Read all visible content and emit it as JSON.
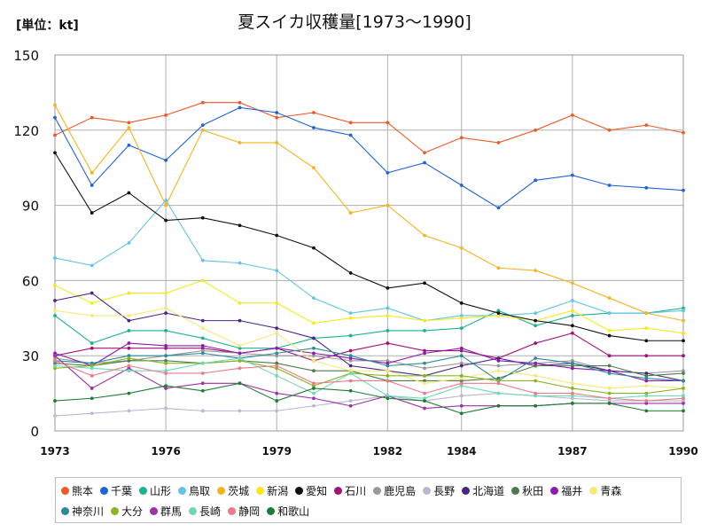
{
  "chart_data": {
    "type": "line",
    "title": "夏スイカ収穫量[1973～1990]",
    "unit_label": "[単位：kt]",
    "ylim": [
      0,
      150
    ],
    "yticks": [
      0,
      30,
      60,
      90,
      120,
      150
    ],
    "xticks": [
      "1973",
      "1976",
      "1979",
      "1982",
      "1984",
      "1987",
      "1990"
    ],
    "grid": true,
    "legend_position": "bottom",
    "years": [
      1973,
      1974,
      1975,
      1976,
      1977,
      1978,
      1979,
      1980,
      1981,
      1982,
      1983,
      1984,
      1985,
      1986,
      1987,
      1988,
      1989,
      1990
    ],
    "series": [
      {
        "name": "熊本",
        "color": "#f05a28",
        "values": [
          118,
          125,
          123,
          126,
          131,
          131,
          125,
          127,
          123,
          123,
          111,
          117,
          115,
          120,
          126,
          120,
          122,
          119
        ]
      },
      {
        "name": "千葉",
        "color": "#1f63d6",
        "values": [
          125,
          98,
          114,
          108,
          122,
          129,
          127,
          121,
          118,
          103,
          107,
          98,
          89,
          100,
          102,
          98,
          97,
          96
        ]
      },
      {
        "name": "山形",
        "color": "#19b48c",
        "values": [
          46,
          35,
          40,
          40,
          37,
          33,
          33,
          37,
          38,
          40,
          40,
          41,
          48,
          42,
          46,
          47,
          47,
          49
        ]
      },
      {
        "name": "鳥取",
        "color": "#64c3ea",
        "values": [
          69,
          66,
          75,
          92,
          68,
          67,
          64,
          53,
          47,
          49,
          44,
          46,
          46,
          47,
          52,
          47,
          47,
          48
        ]
      },
      {
        "name": "茨城",
        "color": "#f5b31e",
        "values": [
          130,
          103,
          121,
          90,
          120,
          115,
          115,
          105,
          87,
          90,
          78,
          73,
          65,
          64,
          59,
          53,
          47,
          44
        ]
      },
      {
        "name": "新潟",
        "color": "#f7e81e",
        "values": [
          58,
          51,
          55,
          55,
          60,
          51,
          51,
          43,
          45,
          46,
          44,
          45,
          46,
          44,
          48,
          40,
          41,
          39
        ]
      },
      {
        "name": "愛知",
        "color": "#111111",
        "values": [
          111,
          87,
          95,
          84,
          85,
          82,
          78,
          73,
          63,
          57,
          59,
          51,
          47,
          44,
          42,
          38,
          36,
          36
        ]
      },
      {
        "name": "石川",
        "color": "#a0137a",
        "values": [
          30,
          33,
          33,
          33,
          33,
          31,
          33,
          28,
          32,
          35,
          32,
          32,
          29,
          35,
          39,
          30,
          30,
          30
        ]
      },
      {
        "name": "鹿児島",
        "color": "#999999",
        "values": [
          29,
          27,
          28,
          30,
          32,
          31,
          30,
          30,
          28,
          28,
          25,
          27,
          26,
          27,
          28,
          24,
          23,
          24
        ]
      },
      {
        "name": "長野",
        "color": "#b8b8d0",
        "values": [
          6,
          7,
          8,
          9,
          8,
          8,
          8,
          10,
          12,
          14,
          12,
          14,
          15,
          14,
          13,
          12,
          12,
          12
        ]
      },
      {
        "name": "北海道",
        "color": "#4a2585",
        "values": [
          52,
          55,
          44,
          47,
          44,
          44,
          41,
          37,
          26,
          24,
          22,
          26,
          29,
          26,
          27,
          24,
          23,
          20
        ]
      },
      {
        "name": "秋田",
        "color": "#4b7c48",
        "values": [
          27,
          26,
          28,
          28,
          27,
          28,
          27,
          24,
          24,
          20,
          20,
          20,
          21,
          26,
          26,
          26,
          22,
          23
        ]
      },
      {
        "name": "福井",
        "color": "#8e1ab0",
        "values": [
          31,
          26,
          35,
          34,
          34,
          31,
          33,
          31,
          29,
          27,
          31,
          33,
          28,
          27,
          25,
          24,
          20,
          20
        ]
      },
      {
        "name": "青森",
        "color": "#f7e87a",
        "values": [
          48,
          46,
          46,
          49,
          41,
          34,
          39,
          28,
          24,
          24,
          19,
          21,
          24,
          22,
          19,
          17,
          18,
          17
        ]
      },
      {
        "name": "神奈川",
        "color": "#2a8c99",
        "values": [
          28,
          27,
          30,
          30,
          31,
          29,
          31,
          33,
          30,
          26,
          27,
          30,
          20,
          29,
          27,
          23,
          21,
          20
        ]
      },
      {
        "name": "大分",
        "color": "#8ab524",
        "values": [
          25,
          26,
          29,
          27,
          27,
          28,
          25,
          18,
          23,
          22,
          22,
          22,
          20,
          20,
          17,
          15,
          15,
          17
        ]
      },
      {
        "name": "群馬",
        "color": "#9c31a8",
        "values": [
          30,
          17,
          25,
          17,
          19,
          19,
          15,
          13,
          10,
          14,
          9,
          10,
          10,
          10,
          11,
          11,
          11,
          11
        ]
      },
      {
        "name": "長崎",
        "color": "#6fd9b4",
        "values": [
          26,
          25,
          24,
          24,
          27,
          29,
          22,
          15,
          23,
          14,
          13,
          18,
          15,
          14,
          14,
          13,
          14,
          14
        ]
      },
      {
        "name": "静岡",
        "color": "#ec7a8a",
        "values": [
          28,
          22,
          26,
          23,
          23,
          25,
          26,
          19,
          20,
          20,
          15,
          19,
          19,
          15,
          15,
          13,
          12,
          13
        ]
      },
      {
        "name": "和歌山",
        "color": "#1e7d34",
        "values": [
          12,
          13,
          15,
          18,
          16,
          19,
          12,
          17,
          16,
          13,
          12,
          7,
          10,
          10,
          11,
          11,
          8,
          8
        ]
      }
    ]
  }
}
